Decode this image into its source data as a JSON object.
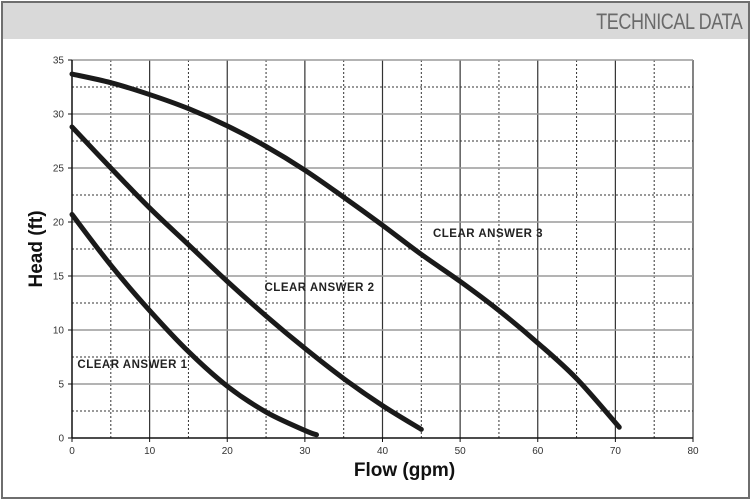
{
  "header": {
    "title": "TECHNICAL DATA"
  },
  "colors": {
    "header_bg": "#d9d9d9",
    "frame": "#6e6e6e",
    "curve": "#1a1a1a",
    "grid_major": "#9a9a9a",
    "grid_minor": "#333333"
  },
  "chart_data": {
    "type": "line",
    "title": "",
    "xlabel": "Flow (gpm)",
    "ylabel": "Head (ft)",
    "xlim": [
      0,
      80
    ],
    "ylim": [
      0,
      35
    ],
    "x_ticks": [
      0,
      10,
      20,
      30,
      40,
      50,
      60,
      70,
      80
    ],
    "y_ticks": [
      0,
      5,
      10,
      15,
      20,
      25,
      30,
      35
    ],
    "grid": true,
    "legend": "inline labels",
    "series": [
      {
        "name": "CLEAR ANSWER 1",
        "x": [
          0,
          5,
          10,
          15,
          20,
          25,
          30,
          31.5
        ],
        "y": [
          20.7,
          16,
          11.8,
          8,
          4.8,
          2.4,
          0.7,
          0.3
        ],
        "label_pos": [
          0.7,
          6.5
        ]
      },
      {
        "name": "CLEAR ANSWER 2",
        "x": [
          0,
          5,
          10,
          15,
          20,
          25,
          30,
          35,
          40,
          45
        ],
        "y": [
          28.8,
          25,
          21.3,
          17.9,
          14.5,
          11.3,
          8.3,
          5.5,
          3,
          0.8
        ],
        "label_pos": [
          24.8,
          13.6
        ]
      },
      {
        "name": "CLEAR ANSWER 3",
        "x": [
          0,
          5,
          10,
          15,
          20,
          25,
          30,
          35,
          40,
          45,
          50,
          55,
          60,
          65,
          70.5
        ],
        "y": [
          33.7,
          32.9,
          31.8,
          30.5,
          28.9,
          27,
          24.8,
          22.3,
          19.7,
          17,
          14.5,
          11.8,
          8.8,
          5.5,
          1
        ],
        "label_pos": [
          46.5,
          18.6
        ]
      }
    ]
  }
}
